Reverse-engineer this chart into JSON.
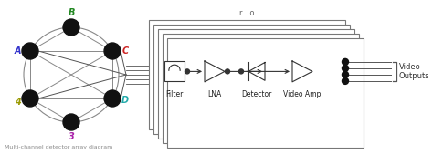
{
  "bg_color": "#ffffff",
  "node_color": "#111111",
  "label_A": "A",
  "label_B": "B",
  "label_C": "C",
  "label_D": "D",
  "label_E": "3",
  "label_F": "4",
  "color_A": "#3333cc",
  "color_B": "#228822",
  "color_C": "#cc2222",
  "color_D": "#22aaaa",
  "color_E": "#aa22aa",
  "color_F": "#999900",
  "box_label": "Filter",
  "lna_label": "LNA",
  "detector_label": "Detector",
  "amp_label": "Video Amp",
  "video_label": "Video\nOutputs",
  "top_label": "r   o",
  "caption": "Multi-channel detector array diagram",
  "edge_color": "#888888",
  "line_color": "#555555",
  "comp_color": "#333333"
}
